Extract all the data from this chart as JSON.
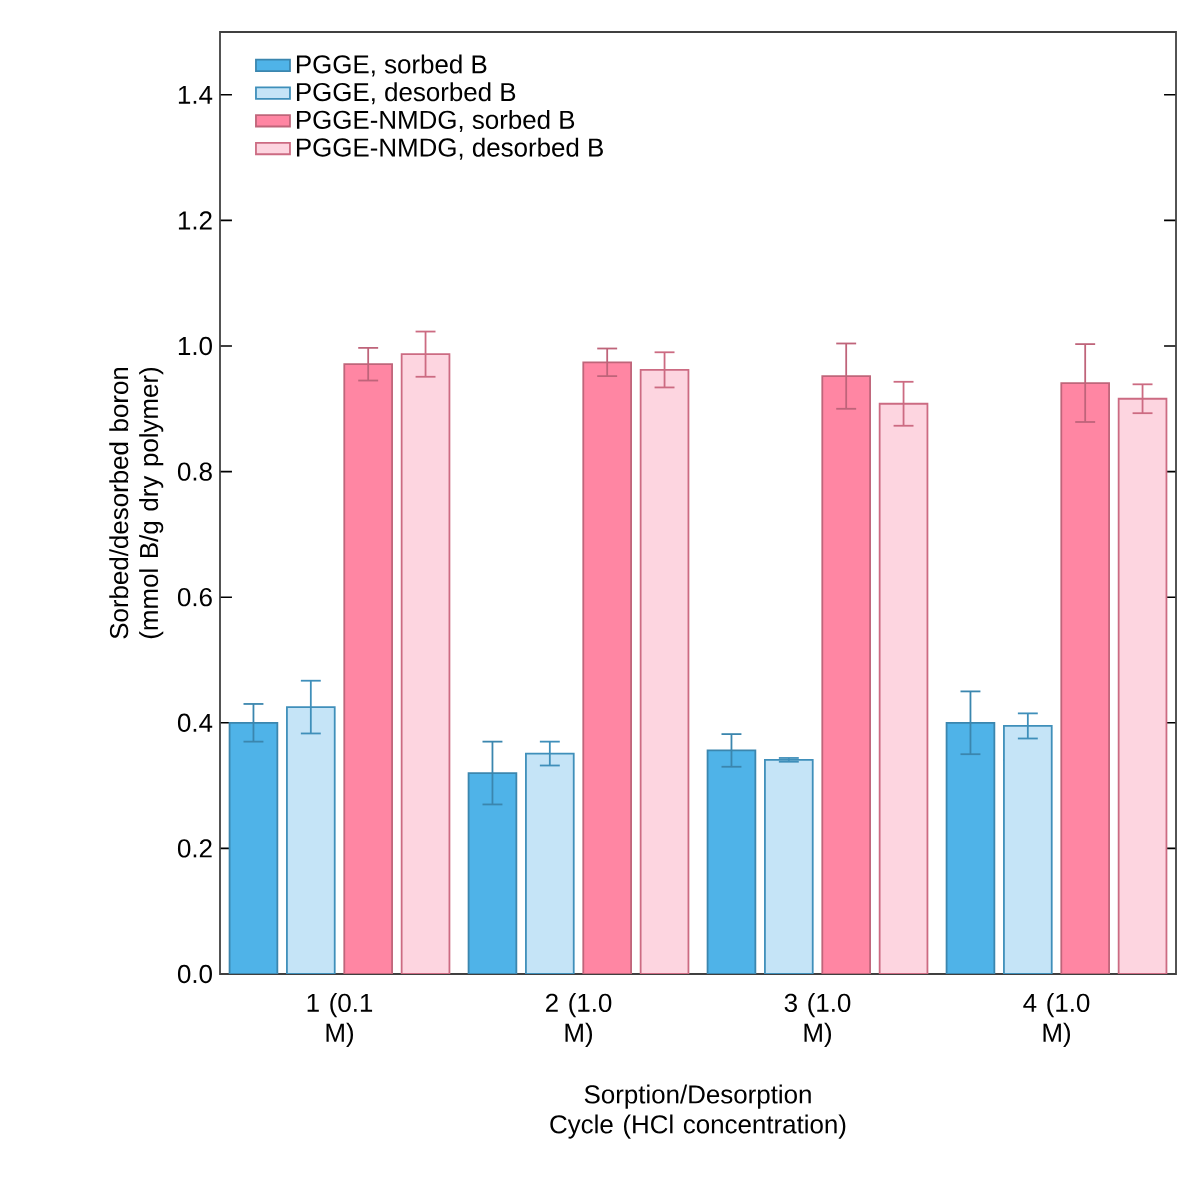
{
  "chart_data": {
    "type": "bar",
    "xlabel": "Sorption/Desorption Cycle (HCl concentration)",
    "ylabel": "Sorbed/desorbed boron (mmol B/g dry polymer)",
    "categories": [
      "1 (0.1 M)",
      "2 (1.0 M)",
      "3 (1.0 M)",
      "4 (1.0 M)"
    ],
    "series": [
      {
        "name": "PGGE, sorbed B",
        "color": "#4fb3e8",
        "values": [
          0.4,
          0.32,
          0.356,
          0.4
        ],
        "errors": [
          0.03,
          0.05,
          0.026,
          0.05
        ]
      },
      {
        "name": "PGGE, desorbed B",
        "color": "#c5e4f7",
        "values": [
          0.425,
          0.351,
          0.341,
          0.395
        ],
        "errors": [
          0.042,
          0.019,
          0.003,
          0.02
        ]
      },
      {
        "name": "PGGE-NMDG, sorbed B",
        "color": "#ff86a3",
        "values": [
          0.971,
          0.974,
          0.952,
          0.941
        ],
        "errors": [
          0.026,
          0.022,
          0.052,
          0.062
        ]
      },
      {
        "name": "PGGE-NMDG, desorbed B",
        "color": "#fdd5e0",
        "values": [
          0.987,
          0.962,
          0.908,
          0.916
        ],
        "errors": [
          0.036,
          0.028,
          0.035,
          0.023
        ]
      }
    ],
    "ylim": [
      0,
      1.5
    ],
    "yticks": [
      {
        "value": 0,
        "label": "0.0"
      },
      {
        "value": 0.2,
        "label": "0.2"
      },
      {
        "value": 0.4,
        "label": "0.4"
      },
      {
        "value": 0.6,
        "label": "0.6"
      },
      {
        "value": 0.8,
        "label": "0.8"
      },
      {
        "value": 1.0,
        "label": "1.0"
      },
      {
        "value": 1.2,
        "label": "1.2"
      },
      {
        "value": 1.4,
        "label": "1.4"
      }
    ],
    "legend": "top left",
    "grid": false
  }
}
